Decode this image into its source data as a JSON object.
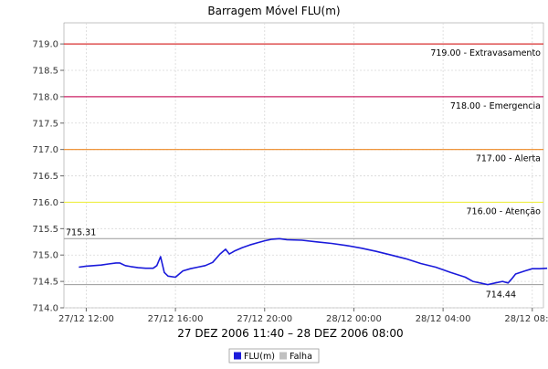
{
  "chart_data": {
    "type": "line",
    "title": "Barragem Móvel FLU(m)",
    "xlabel": "27 DEZ 2006 11:40 – 28 DEZ 2006 08:00",
    "ylabel": "",
    "ylim": [
      714.0,
      719.4
    ],
    "xlim": [
      "2006-12-27 11:00",
      "2006-12-28 08:30"
    ],
    "grid": true,
    "legend_position": "bottom",
    "x_ticks": [
      "27/12 12:00",
      "27/12 16:00",
      "27/12 20:00",
      "28/12 00:00",
      "28/12 04:00",
      "28/12 08:00"
    ],
    "y_ticks": [
      "714.0",
      "714.5",
      "715.0",
      "715.5",
      "716.0",
      "716.5",
      "717.0",
      "717.5",
      "718.0",
      "718.5",
      "719.0"
    ],
    "threshold_lines": [
      {
        "value": 719.0,
        "label": "719.00 - Extravasamento",
        "color": "#d93030"
      },
      {
        "value": 718.0,
        "label": "718.00 - Emergencia",
        "color": "#cc2266"
      },
      {
        "value": 717.0,
        "label": "717.00 - Alerta",
        "color": "#ee8822"
      },
      {
        "value": 716.0,
        "label": "716.00 - Atenção",
        "color": "#eeee44"
      }
    ],
    "reference_lines": [
      {
        "value": 715.31,
        "label": "715.31",
        "label_side": "left",
        "color": "#999999"
      },
      {
        "value": 714.44,
        "label": "714.44",
        "label_side": "right",
        "color": "#999999"
      }
    ],
    "series": [
      {
        "name": "FLU(m)",
        "color": "#1a1adb",
        "points": [
          [
            "2006-12-27 11:40",
            714.77
          ],
          [
            "2006-12-27 12:00",
            714.79
          ],
          [
            "2006-12-27 12:20",
            714.8
          ],
          [
            "2006-12-27 12:40",
            714.81
          ],
          [
            "2006-12-27 13:00",
            714.83
          ],
          [
            "2006-12-27 13:20",
            714.85
          ],
          [
            "2006-12-27 13:30",
            714.85
          ],
          [
            "2006-12-27 13:45",
            714.8
          ],
          [
            "2006-12-27 14:00",
            714.78
          ],
          [
            "2006-12-27 14:20",
            714.76
          ],
          [
            "2006-12-27 14:40",
            714.75
          ],
          [
            "2006-12-27 15:00",
            714.75
          ],
          [
            "2006-12-27 15:10",
            714.8
          ],
          [
            "2006-12-27 15:20",
            714.97
          ],
          [
            "2006-12-27 15:30",
            714.67
          ],
          [
            "2006-12-27 15:40",
            714.6
          ],
          [
            "2006-12-27 16:00",
            714.58
          ],
          [
            "2006-12-27 16:20",
            714.7
          ],
          [
            "2006-12-27 16:40",
            714.74
          ],
          [
            "2006-12-27 17:00",
            714.77
          ],
          [
            "2006-12-27 17:20",
            714.8
          ],
          [
            "2006-12-27 17:40",
            714.86
          ],
          [
            "2006-12-27 18:00",
            715.02
          ],
          [
            "2006-12-27 18:15",
            715.11
          ],
          [
            "2006-12-27 18:25",
            715.02
          ],
          [
            "2006-12-27 18:40",
            715.08
          ],
          [
            "2006-12-27 19:00",
            715.14
          ],
          [
            "2006-12-27 19:20",
            715.19
          ],
          [
            "2006-12-27 19:40",
            715.23
          ],
          [
            "2006-12-27 20:00",
            715.27
          ],
          [
            "2006-12-27 20:20",
            715.3
          ],
          [
            "2006-12-27 20:40",
            715.31
          ],
          [
            "2006-12-27 21:00",
            715.29
          ],
          [
            "2006-12-27 21:40",
            715.28
          ],
          [
            "2006-12-27 22:20",
            715.25
          ],
          [
            "2006-12-27 23:00",
            715.22
          ],
          [
            "2006-12-27 23:40",
            715.18
          ],
          [
            "2006-12-28 00:20",
            715.13
          ],
          [
            "2006-12-28 01:00",
            715.07
          ],
          [
            "2006-12-28 01:40",
            715.0
          ],
          [
            "2006-12-28 02:20",
            714.93
          ],
          [
            "2006-12-28 03:00",
            714.84
          ],
          [
            "2006-12-28 03:40",
            714.77
          ],
          [
            "2006-12-28 04:20",
            714.67
          ],
          [
            "2006-12-28 05:00",
            714.58
          ],
          [
            "2006-12-28 05:20",
            714.5
          ],
          [
            "2006-12-28 05:40",
            714.47
          ],
          [
            "2006-12-28 06:00",
            714.44
          ],
          [
            "2006-12-28 06:20",
            714.47
          ],
          [
            "2006-12-28 06:40",
            714.5
          ],
          [
            "2006-12-28 06:55",
            714.47
          ],
          [
            "2006-12-28 07:05",
            714.55
          ],
          [
            "2006-12-28 07:15",
            714.64
          ],
          [
            "2006-12-28 07:40",
            714.7
          ],
          [
            "2006-12-28 08:00",
            714.74
          ],
          [
            "2006-12-28 08:20",
            714.74
          ],
          [
            "2006-12-28 08:40",
            714.75
          ]
        ]
      }
    ],
    "legend": [
      {
        "label": "FLU(m)",
        "color": "#1a1adb"
      },
      {
        "label": "Falha",
        "color": "#c0c0c0"
      }
    ]
  }
}
